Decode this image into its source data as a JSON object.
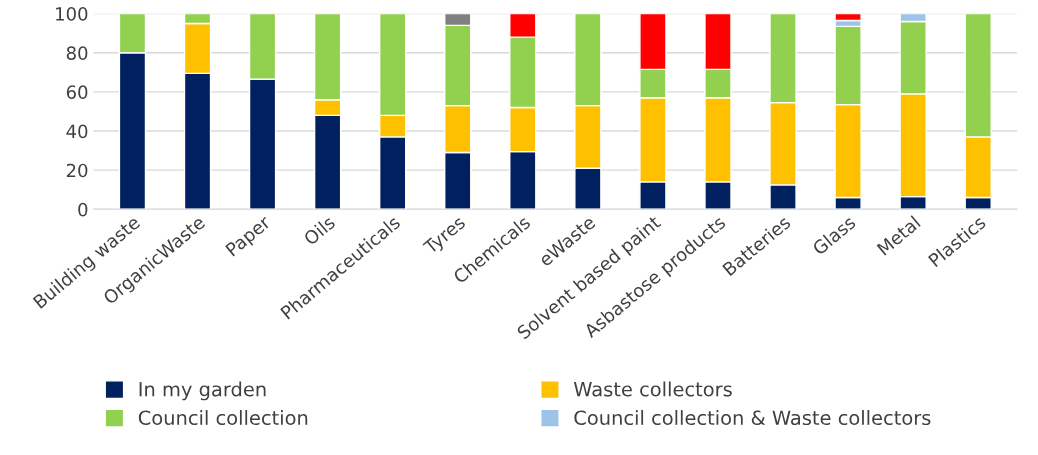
{
  "chart_data": {
    "type": "bar",
    "stacked": true,
    "categories": [
      "Building waste",
      "OrganicWaste",
      "Paper",
      "Oils",
      "Pharmaceuticals",
      "Tyres",
      "Chemicals",
      "eWaste",
      "Solvent based paint",
      "Asbastose products",
      "Batteries",
      "Glass",
      "Metal",
      "Plastics"
    ],
    "series": [
      {
        "name": "In my garden",
        "color": "#002060",
        "values": [
          80,
          69.5,
          66.5,
          48,
          37,
          29,
          29.5,
          21,
          14,
          14,
          12.5,
          6,
          6.5,
          6
        ]
      },
      {
        "name": "Waste collectors",
        "color": "#ffc000",
        "values": [
          null,
          25.5,
          null,
          8,
          11,
          24,
          22.5,
          32,
          43,
          43,
          42,
          47.5,
          52.5,
          31
        ]
      },
      {
        "name": "Council collection",
        "color": "#92d050",
        "values": [
          20,
          5,
          33.5,
          44,
          52,
          41,
          36,
          47,
          14.5,
          14.5,
          45.5,
          40,
          37,
          63
        ]
      },
      {
        "name": "Council collection & Waste collectors",
        "color": "#9dc3e6",
        "values": [
          null,
          null,
          null,
          null,
          null,
          null,
          null,
          null,
          null,
          null,
          null,
          3,
          4,
          null
        ]
      },
      {
        "color": "#ff0000",
        "values": [
          null,
          null,
          null,
          null,
          null,
          null,
          12,
          null,
          28.5,
          28.5,
          null,
          3.5,
          null,
          null
        ]
      },
      {
        "color": "#808080",
        "values": [
          null,
          null,
          null,
          null,
          null,
          6,
          null,
          null,
          null,
          null,
          null,
          null,
          null,
          null
        ]
      }
    ],
    "ylim": [
      0,
      100
    ],
    "yticks": [
      0,
      20,
      40,
      60,
      80,
      100
    ],
    "grid": "y",
    "legend": "bottom"
  }
}
